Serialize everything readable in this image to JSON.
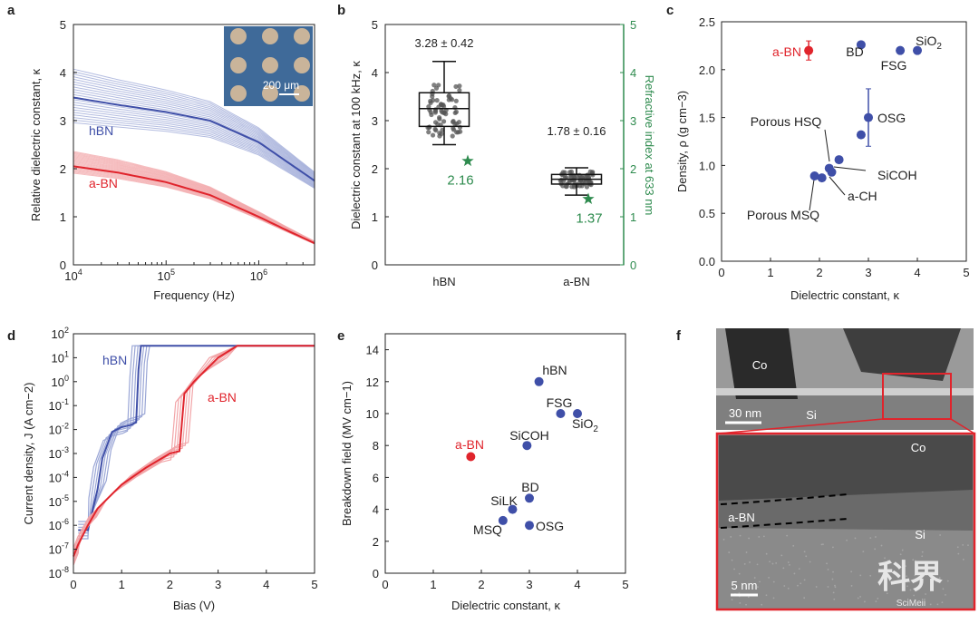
{
  "colors": {
    "blue": "#3f4fa8",
    "blue_light": "#9aa6d6",
    "red": "#e0242c",
    "red_light": "#f2a5a8",
    "green": "#2e8b4e",
    "grey": "#666666"
  },
  "chart_data": [
    {
      "panel": "a",
      "type": "line",
      "xlabel": "Frequency (Hz)",
      "ylabel": "Relative dielectric constant, κ",
      "x_scale": "log",
      "xlim": [
        10000,
        4000000
      ],
      "ylim": [
        0,
        5
      ],
      "x_ticks": [
        {
          "base": "10",
          "exp": "4"
        },
        {
          "base": "10",
          "exp": "5"
        },
        {
          "base": "10",
          "exp": "6"
        }
      ],
      "y_ticks": [
        "0",
        "1",
        "2",
        "3",
        "4",
        "5"
      ],
      "series": [
        {
          "name": "hBN",
          "x": [
            10000,
            30000,
            100000,
            300000,
            1000000,
            2000000,
            4000000
          ],
          "y": [
            3.48,
            3.33,
            3.18,
            3.0,
            2.55,
            2.15,
            1.75
          ],
          "spread_low": 0.85,
          "spread_high": 1.17
        },
        {
          "name": "a-BN",
          "x": [
            10000,
            30000,
            100000,
            300000,
            1000000,
            2000000,
            4000000
          ],
          "y": [
            2.05,
            1.92,
            1.72,
            1.45,
            1.0,
            0.72,
            0.45
          ],
          "spread_low": 0.93,
          "spread_high": 1.15
        }
      ],
      "inset_label": "200 μm"
    },
    {
      "panel": "b",
      "type": "box",
      "ylabel": "Dielectric constant at 100 kHz, κ",
      "y2label": "Refractive index at 633 nm",
      "ylim": [
        0,
        5
      ],
      "y2lim": [
        0,
        5
      ],
      "y_ticks": [
        "0",
        "1",
        "2",
        "3",
        "4",
        "5"
      ],
      "y2_ticks": [
        "0",
        "1",
        "2",
        "3",
        "4",
        "5"
      ],
      "categories": [
        "hBN",
        "a-BN"
      ],
      "boxes": [
        {
          "name": "hBN",
          "min": 2.5,
          "q1": 2.88,
          "median": 3.25,
          "q3": 3.58,
          "max": 4.23,
          "label": "3.28 ± 0.42",
          "refractive": 2.16,
          "refractive_label": "2.16"
        },
        {
          "name": "a-BN",
          "min": 1.45,
          "q1": 1.68,
          "median": 1.78,
          "q3": 1.88,
          "max": 2.02,
          "label": "1.78 ± 0.16",
          "refractive": 1.37,
          "refractive_label": "1.37"
        }
      ]
    },
    {
      "panel": "c",
      "type": "scatter",
      "xlabel": "Dielectric constant, κ",
      "ylabel": "Density, ρ (g cm−3)",
      "xlim": [
        0,
        5
      ],
      "ylim": [
        0,
        2.5
      ],
      "x_ticks": [
        "0",
        "1",
        "2",
        "3",
        "4",
        "5"
      ],
      "y_ticks": [
        "0.0",
        "0.5",
        "1.0",
        "1.5",
        "2.0",
        "2.5"
      ],
      "points": [
        {
          "name": "a-BN",
          "x": 1.78,
          "y": 2.2,
          "err": 0.1,
          "highlight": true
        },
        {
          "name": "BD",
          "x": 2.85,
          "y": 2.26
        },
        {
          "name": "FSG",
          "x": 3.65,
          "y": 2.2
        },
        {
          "name": "SiO2",
          "x": 4.0,
          "y": 2.2
        },
        {
          "name": "OSG",
          "x": 3.0,
          "y": 1.5,
          "err": 0.3
        },
        {
          "name": "Porous HSQ",
          "x": 2.2,
          "y": 0.97
        },
        {
          "name": "SiCOH",
          "x": 2.4,
          "y": 1.06
        },
        {
          "name": "a-CH",
          "x": 2.25,
          "y": 0.93
        },
        {
          "name": "Porous MSQ",
          "x": 1.9,
          "y": 0.89
        },
        {
          "name": "a-CH 2",
          "x": 2.05,
          "y": 0.87
        },
        {
          "name": "SiCOH 2",
          "x": 2.85,
          "y": 1.32
        }
      ],
      "labels": [
        "a-BN",
        "BD",
        "FSG",
        "SiO",
        "2",
        "OSG",
        "Porous HSQ",
        "SiCOH",
        "a-CH",
        "Porous MSQ"
      ]
    },
    {
      "panel": "d",
      "type": "line",
      "xlabel": "Bias (V)",
      "ylabel": "Current density, J (A cm−2)",
      "y_scale": "log",
      "xlim": [
        0,
        5
      ],
      "ylim": [
        1e-08,
        100
      ],
      "x_ticks": [
        "0",
        "1",
        "2",
        "3",
        "4",
        "5"
      ],
      "y_ticks": [
        {
          "base": "10",
          "exp": "2"
        },
        {
          "base": "10",
          "exp": "1"
        },
        {
          "base": "10",
          "exp": "0"
        },
        {
          "base": "10",
          "exp": "-1"
        },
        {
          "base": "10",
          "exp": "-2"
        },
        {
          "base": "10",
          "exp": "-3"
        },
        {
          "base": "10",
          "exp": "-4"
        },
        {
          "base": "10",
          "exp": "-5"
        },
        {
          "base": "10",
          "exp": "-6"
        },
        {
          "base": "10",
          "exp": "-7"
        },
        {
          "base": "10",
          "exp": "-8"
        }
      ],
      "series": [
        {
          "name": "hBN",
          "x": [
            0.1,
            0.3,
            0.5,
            0.6,
            0.8,
            1.0,
            1.2,
            1.3,
            1.35,
            1.4,
            2.0,
            5.0
          ],
          "log_y": [
            -6.2,
            -6.2,
            -4.5,
            -3.2,
            -2.1,
            -1.9,
            -1.8,
            -1.7,
            0.5,
            1.5,
            1.5,
            1.5
          ]
        },
        {
          "name": "a-BN",
          "x": [
            0.0,
            0.1,
            0.3,
            0.5,
            1.0,
            1.5,
            2.0,
            2.2,
            2.3,
            2.5,
            3.0,
            3.4,
            5.0
          ],
          "log_y": [
            -7.3,
            -6.8,
            -6.0,
            -5.3,
            -4.3,
            -3.6,
            -3.0,
            -2.9,
            -0.5,
            0.0,
            1.0,
            1.5,
            1.5
          ]
        }
      ]
    },
    {
      "panel": "e",
      "type": "scatter",
      "xlabel": "Dielectric constant, κ",
      "ylabel": "Breakdown field (MV cm−1)",
      "xlim": [
        0,
        5
      ],
      "ylim": [
        0,
        15
      ],
      "x_ticks": [
        "0",
        "1",
        "2",
        "3",
        "4",
        "5"
      ],
      "y_ticks": [
        "0",
        "2",
        "4",
        "6",
        "8",
        "10",
        "12",
        "14"
      ],
      "points": [
        {
          "name": "hBN",
          "x": 3.2,
          "y": 12.0
        },
        {
          "name": "FSG",
          "x": 3.65,
          "y": 10.0
        },
        {
          "name": "SiO2",
          "x": 4.0,
          "y": 10.0
        },
        {
          "name": "SiCOH",
          "x": 2.95,
          "y": 8.0
        },
        {
          "name": "a-BN",
          "x": 1.78,
          "y": 7.3,
          "highlight": true
        },
        {
          "name": "BD",
          "x": 3.0,
          "y": 4.7
        },
        {
          "name": "SiLK",
          "x": 2.65,
          "y": 4.0
        },
        {
          "name": "MSQ",
          "x": 2.45,
          "y": 3.3
        },
        {
          "name": "OSG",
          "x": 3.0,
          "y": 3.0
        }
      ],
      "labels": [
        "hBN",
        "FSG",
        "SiO",
        "2",
        "SiCOH",
        "a-BN",
        "BD",
        "SiLK",
        "MSQ",
        "OSG"
      ]
    }
  ],
  "panel_f": {
    "top_labels": {
      "co": "Co",
      "si": "Si",
      "scale": "30 nm"
    },
    "bottom_labels": {
      "co": "Co",
      "si": "Si",
      "abn": "a-BN",
      "scale": "5 nm"
    },
    "watermark": "科界",
    "watermark_sub": "SciMeii"
  },
  "panel_letters": [
    "a",
    "b",
    "c",
    "d",
    "e",
    "f"
  ]
}
